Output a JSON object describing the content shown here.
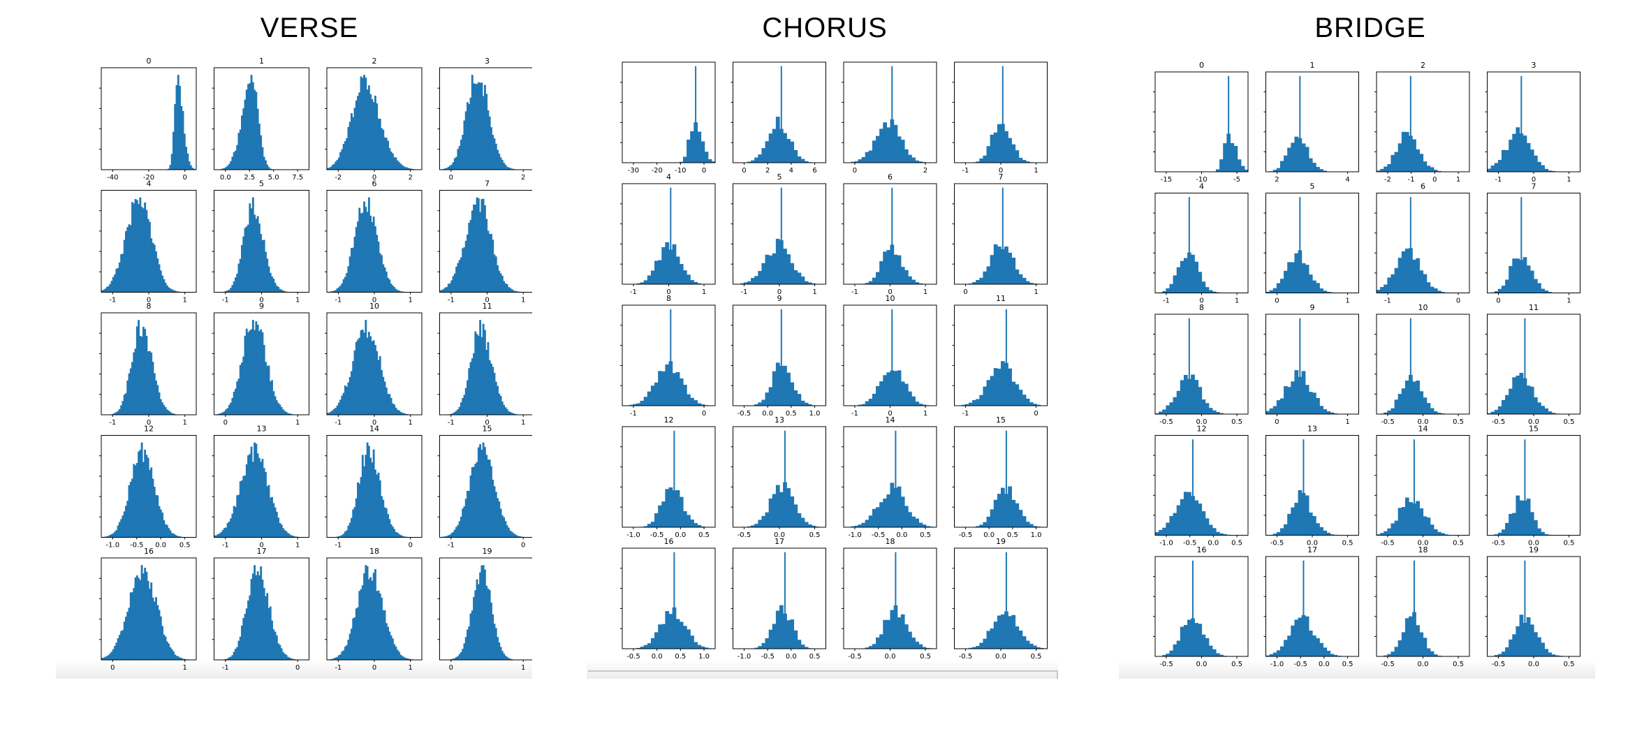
{
  "colors": {
    "bar": "#1f77b4",
    "axis": "#000000",
    "background": "#ffffff"
  },
  "panels": [
    {
      "title": "VERSE",
      "style": "smooth",
      "subplot_titles": [
        "0",
        "1",
        "2",
        "3",
        "4",
        "5",
        "6",
        "7",
        "8",
        "9",
        "10",
        "11",
        "12",
        "13",
        "14",
        "15",
        "16",
        "17",
        "18",
        "19"
      ],
      "xticks": [
        [
          "-40",
          "-20",
          "0"
        ],
        [
          "0.0",
          "2.5",
          "5.0",
          "7.5"
        ],
        [
          "-2",
          "0",
          "2"
        ],
        [
          "0",
          "2"
        ],
        [
          "-1",
          "0",
          "1"
        ],
        [
          "-1",
          "0",
          "1"
        ],
        [
          "-1",
          "0",
          "1"
        ],
        [
          "-1",
          "0",
          "1"
        ],
        [
          "-1",
          "0",
          "1"
        ],
        [
          "0",
          "1"
        ],
        [
          "-1",
          "0",
          "1"
        ],
        [
          "-1",
          "0",
          "1"
        ],
        [
          "-1.0",
          "-0.5",
          "0.0",
          "0.5"
        ],
        [
          "-1",
          "0",
          "1"
        ],
        [
          "-1",
          "0"
        ],
        [
          "-1",
          "0"
        ],
        [
          "0",
          "1"
        ],
        [
          "-1",
          "0"
        ],
        [
          "-1",
          "0",
          "1"
        ],
        [
          "0",
          "1"
        ]
      ]
    },
    {
      "title": "CHORUS",
      "style": "spike",
      "subplot_titles": [
        "",
        "",
        "",
        "",
        "4",
        "5",
        "6",
        "7",
        "8",
        "9",
        "10",
        "11",
        "12",
        "13",
        "14",
        "15",
        "16",
        "17",
        "18",
        "19"
      ],
      "xticks": [
        [
          "-30",
          "-20",
          "-10",
          "0"
        ],
        [
          "0",
          "2",
          "4",
          "6"
        ],
        [
          "0",
          "2"
        ],
        [
          "-1",
          "0",
          "1"
        ],
        [
          "-1",
          "0",
          "1"
        ],
        [
          "-1",
          "0",
          "1"
        ],
        [
          "-1",
          "0",
          "1"
        ],
        [
          "0",
          "1"
        ],
        [
          "-1",
          "0"
        ],
        [
          "-0.5",
          "0.0",
          "0.5",
          "1.0"
        ],
        [
          "-1",
          "0",
          "1"
        ],
        [
          "-1",
          "0"
        ],
        [
          "-1.0",
          "-0.5",
          "0.0",
          "0.5"
        ],
        [
          "-0.5",
          "0.0",
          "0.5"
        ],
        [
          "-1.0",
          "-0.5",
          "0.0",
          "0.5"
        ],
        [
          "-0.5",
          "0.0",
          "0.5",
          "1.0"
        ],
        [
          "-0.5",
          "0.0",
          "0.5",
          "1.0"
        ],
        [
          "-1.0",
          "-0.5",
          "0.0",
          "0.5"
        ],
        [
          "-0.5",
          "0.0",
          "0.5"
        ],
        [
          "-0.5",
          "0.0",
          "0.5"
        ]
      ]
    },
    {
      "title": "BRIDGE",
      "style": "spike",
      "subplot_titles": [
        "0",
        "1",
        "2",
        "3",
        "4",
        "5",
        "6",
        "7",
        "8",
        "9",
        "10",
        "11",
        "12",
        "13",
        "14",
        "15",
        "16",
        "17",
        "18",
        "19"
      ],
      "xticks": [
        [
          "-15",
          "-10",
          "-5"
        ],
        [
          "2",
          "4"
        ],
        [
          "-2",
          "-1",
          "0",
          "1"
        ],
        [
          "-1",
          "0",
          "1"
        ],
        [
          "-1",
          "0",
          "1"
        ],
        [
          "0",
          "1"
        ],
        [
          "-1",
          "0"
        ],
        [
          "0",
          "1"
        ],
        [
          "-0.5",
          "0.0",
          "0.5"
        ],
        [
          "0",
          "1"
        ],
        [
          "-0.5",
          "0.0",
          "0.5"
        ],
        [
          "-0.5",
          "0.0",
          "0.5"
        ],
        [
          "-1.0",
          "-0.5",
          "0.0",
          "0.5"
        ],
        [
          "-0.5",
          "0.0",
          "0.5"
        ],
        [
          "-0.5",
          "0.0",
          "0.5"
        ],
        [
          "-0.5",
          "0.0",
          "0.5"
        ],
        [
          "-0.5",
          "0.0",
          "0.5"
        ],
        [
          "-1.0",
          "-0.5",
          "0.0",
          "0.5"
        ],
        [
          "-0.5",
          "0.0",
          "0.5"
        ],
        [
          "-0.5",
          "0.0",
          "0.5"
        ]
      ]
    }
  ],
  "chart_data": [
    {
      "type": "bar",
      "title": "VERSE",
      "panel_count": 20,
      "grid": false
    },
    {
      "type": "bar",
      "title": "CHORUS",
      "panel_count": 20,
      "grid": false
    },
    {
      "type": "bar",
      "title": "BRIDGE",
      "panel_count": 20,
      "grid": false
    }
  ]
}
